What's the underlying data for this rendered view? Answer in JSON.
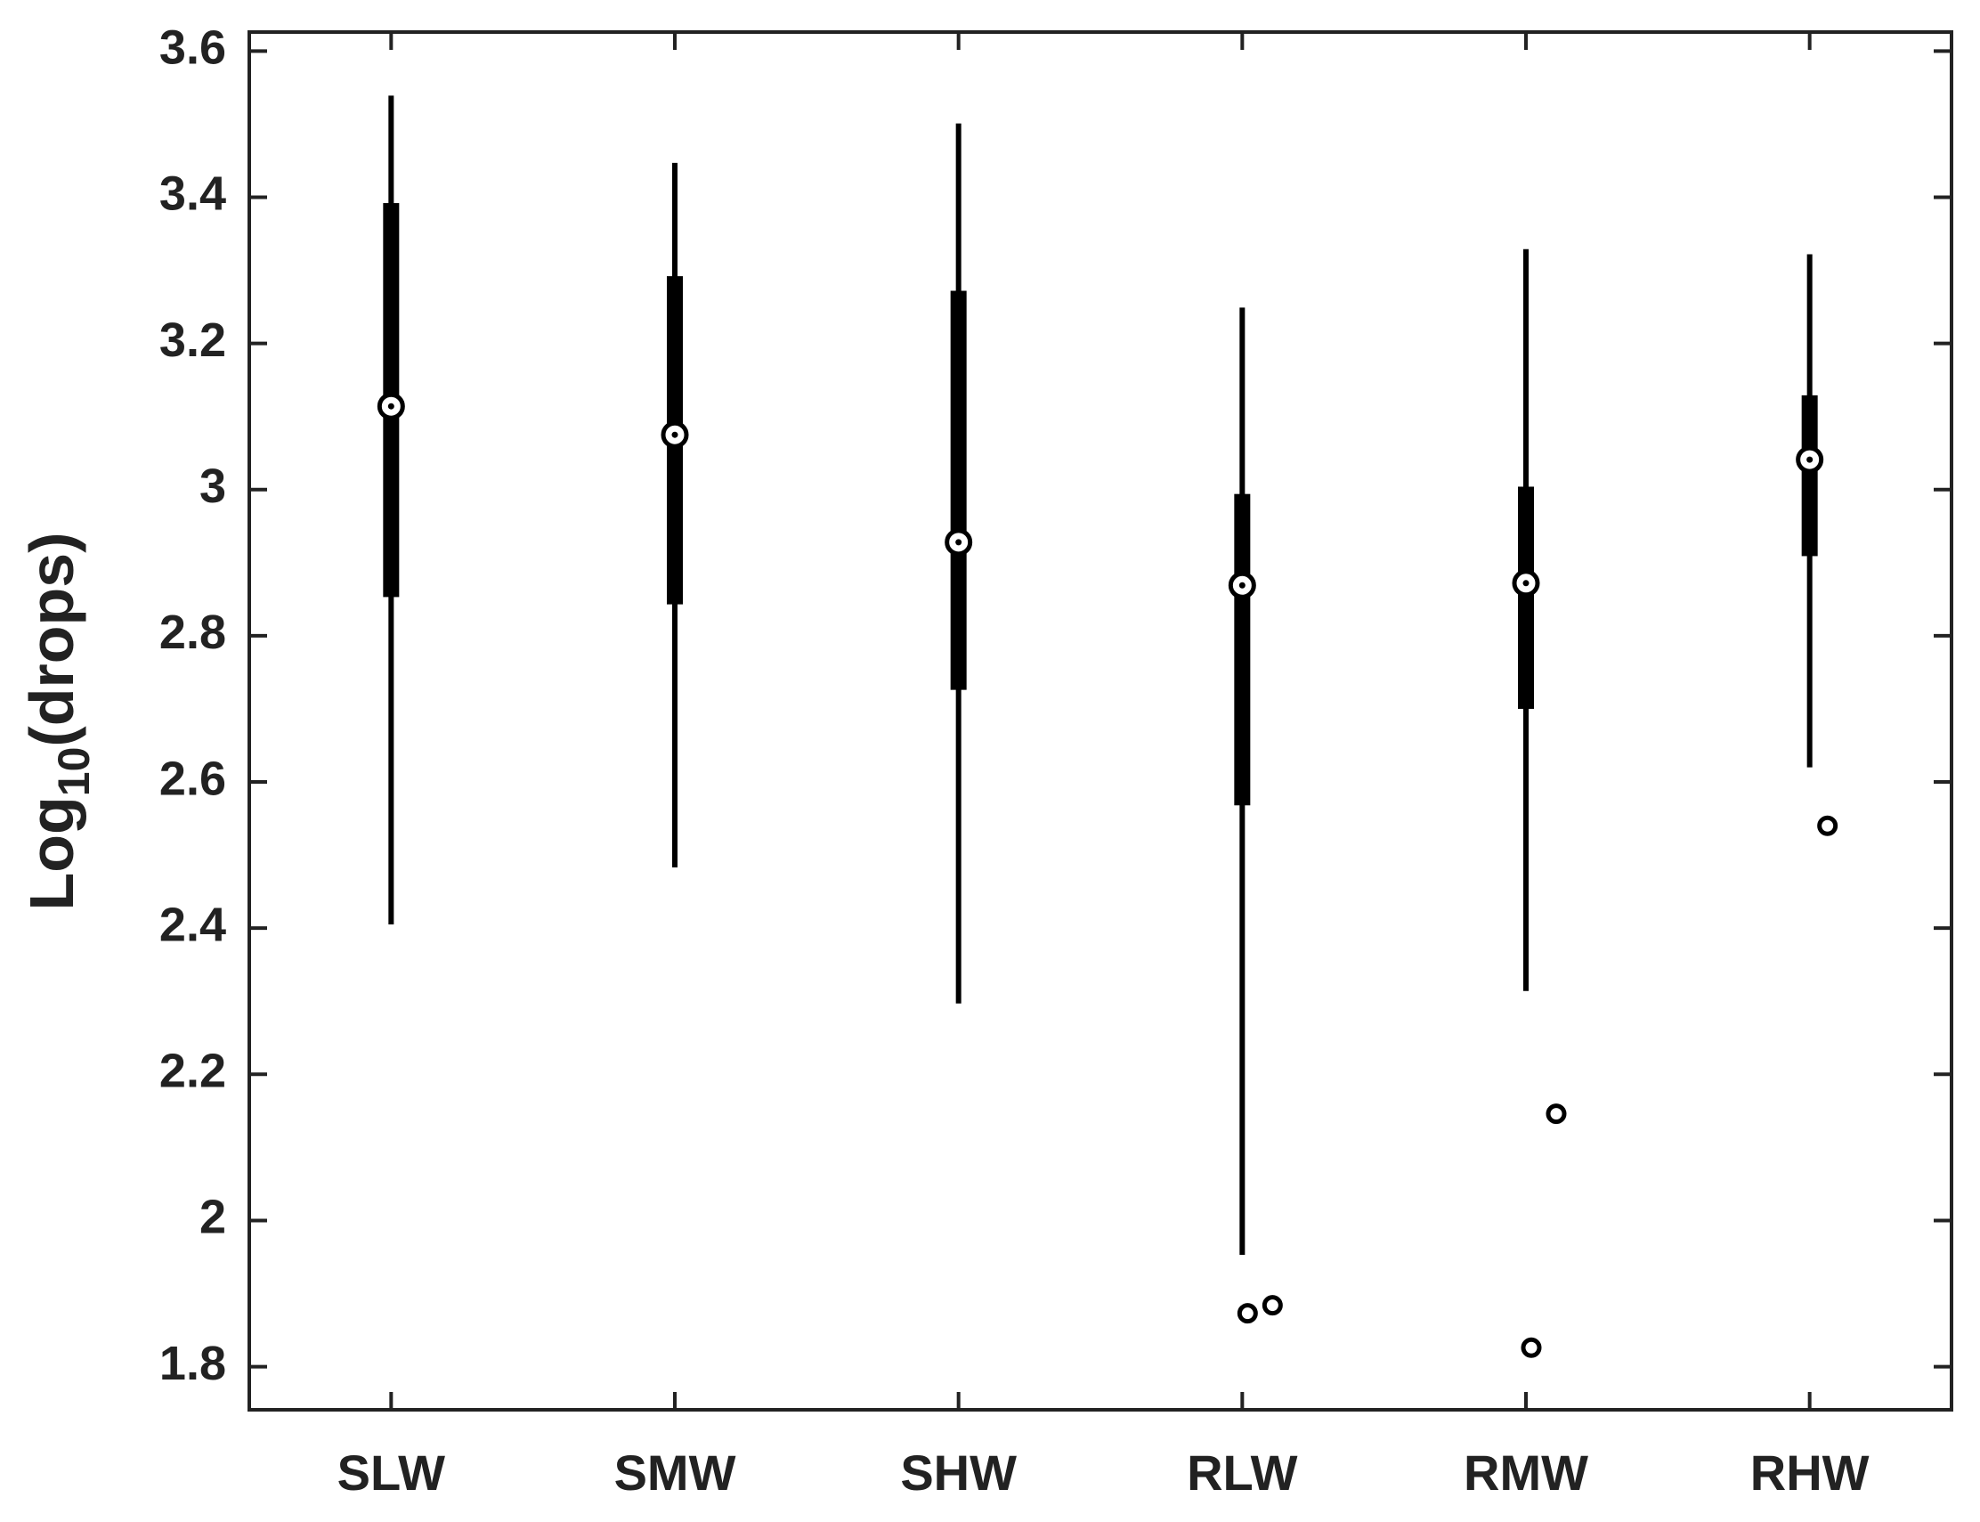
{
  "chart_data": {
    "type": "box",
    "categories": [
      "SLW",
      "SMW",
      "SHW",
      "RLW",
      "RMW",
      "RHW"
    ],
    "boxes": [
      {
        "whisker_low": 2.405,
        "q1": 2.853,
        "median": 3.114,
        "q3": 3.392,
        "whisker_high": 3.539,
        "outliers": []
      },
      {
        "whisker_low": 2.483,
        "q1": 2.843,
        "median": 3.075,
        "q3": 3.292,
        "whisker_high": 3.447,
        "outliers": []
      },
      {
        "whisker_low": 2.297,
        "q1": 2.726,
        "median": 2.928,
        "q3": 3.272,
        "whisker_high": 3.501,
        "outliers": []
      },
      {
        "whisker_low": 1.953,
        "q1": 2.568,
        "median": 2.869,
        "q3": 2.994,
        "whisker_high": 3.249,
        "outliers": [
          1.873,
          1.884
        ]
      },
      {
        "whisker_low": 2.314,
        "q1": 2.7,
        "median": 2.872,
        "q3": 3.004,
        "whisker_high": 3.329,
        "outliers": [
          1.826,
          2.146
        ]
      },
      {
        "whisker_low": 2.62,
        "q1": 2.909,
        "median": 3.041,
        "q3": 3.129,
        "whisker_high": 3.322,
        "outliers": [
          2.54
        ]
      }
    ],
    "color": "#000000",
    "ylabel": [
      "Log",
      "10",
      "(drops)"
    ],
    "ylim": [
      1.741,
      3.626
    ],
    "yticks": [
      1.8,
      2,
      2.2,
      2.4,
      2.6,
      2.8,
      3,
      3.2,
      3.4,
      3.6
    ]
  }
}
